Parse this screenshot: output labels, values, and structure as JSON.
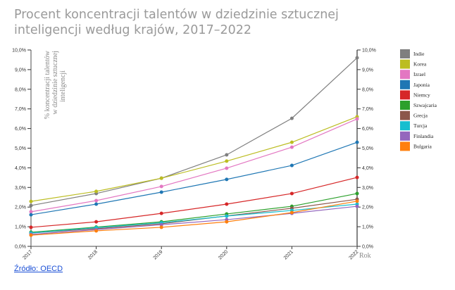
{
  "title": "Procent koncentracji talentów w dziedzinie sztucznej inteligencji według krajów, 2017–2022",
  "source_link": "Źródło: OECD",
  "chart_data": {
    "type": "line",
    "title": "Procent koncentracji talentów w dziedzinie sztucznej inteligencji według krajów, 2017–2022",
    "xlabel": "Rok",
    "ylabel": "% koncentracji talentów w dziedzinie sztucznej inteligencji",
    "x": [
      "2017",
      "2018",
      "2019",
      "2020",
      "2021",
      "2022"
    ],
    "ylim": [
      0,
      10
    ],
    "yticks": [
      "0,0%",
      "1,0%",
      "2,0%",
      "3,0%",
      "4,0%",
      "5,0%",
      "6,0%",
      "7,0%",
      "8,0%",
      "9,0%",
      "10,0%"
    ],
    "grid": false,
    "legend_position": "right",
    "dual_y_axis": true,
    "series": [
      {
        "name": "Indie",
        "color": "#7f7f7f",
        "values": [
          2.08,
          2.69,
          3.47,
          4.66,
          6.52,
          9.6
        ]
      },
      {
        "name": "Korea",
        "color": "#bcbd22",
        "values": [
          2.29,
          2.8,
          3.47,
          4.34,
          5.3,
          6.6
        ]
      },
      {
        "name": "Izrael",
        "color": "#e377c2",
        "values": [
          1.76,
          2.33,
          3.05,
          3.98,
          5.05,
          6.49
        ]
      },
      {
        "name": "Japonia",
        "color": "#1f77b4",
        "values": [
          1.61,
          2.15,
          2.76,
          3.41,
          4.12,
          5.3
        ]
      },
      {
        "name": "Niemcy",
        "color": "#d62728",
        "values": [
          0.97,
          1.25,
          1.68,
          2.15,
          2.69,
          3.51
        ]
      },
      {
        "name": "Szwajcaria",
        "color": "#2ca02c",
        "values": [
          0.72,
          0.98,
          1.25,
          1.65,
          2.04,
          2.69
        ]
      },
      {
        "name": "Grecja",
        "color": "#8c564b",
        "values": [
          0.68,
          0.9,
          1.15,
          1.55,
          1.94,
          2.4
        ]
      },
      {
        "name": "Turcja",
        "color": "#17becf",
        "values": [
          0.68,
          0.95,
          1.2,
          1.54,
          1.83,
          2.15
        ]
      },
      {
        "name": "Finlandia",
        "color": "#9467bd",
        "values": [
          0.61,
          0.85,
          1.1,
          1.36,
          1.68,
          2.04
        ]
      },
      {
        "name": "Bulgaria",
        "color": "#ff7f0e",
        "values": [
          0.57,
          0.79,
          0.97,
          1.25,
          1.72,
          2.3
        ]
      }
    ]
  }
}
